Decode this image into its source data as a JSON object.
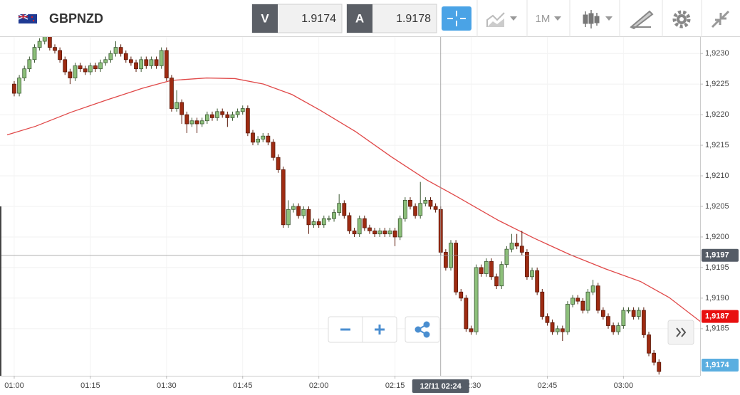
{
  "toolbar": {
    "symbol": "GBPNZD",
    "bid_label": "V",
    "bid": "1.9174",
    "ask_label": "A",
    "ask": "1.9178",
    "interval": "1M"
  },
  "chart_data": {
    "type": "candlestick",
    "up_color": "#8cbf7a",
    "down_color": "#9e2b12",
    "grid": true,
    "xlim": [
      57.2,
      195.1
    ],
    "ylim": [
      1.91773,
      1.92327
    ],
    "xticks": [
      {
        "value": 60,
        "label": "01:00"
      },
      {
        "value": 75,
        "label": "01:15"
      },
      {
        "value": 90,
        "label": "01:30"
      },
      {
        "value": 105,
        "label": "01:45"
      },
      {
        "value": 120,
        "label": "02:00"
      },
      {
        "value": 135,
        "label": "02:15"
      },
      {
        "value": 150,
        "label": "02:30"
      },
      {
        "value": 165,
        "label": "02:45"
      },
      {
        "value": 180,
        "label": "03:00"
      }
    ],
    "yticks": [
      {
        "value": 1.923,
        "label": "1,9230"
      },
      {
        "value": 1.9225,
        "label": "1,9225"
      },
      {
        "value": 1.922,
        "label": "1,9220"
      },
      {
        "value": 1.9215,
        "label": "1,9215"
      },
      {
        "value": 1.921,
        "label": "1,9210"
      },
      {
        "value": 1.9205,
        "label": "1,9205"
      },
      {
        "value": 1.92,
        "label": "1,9200"
      },
      {
        "value": 1.9195,
        "label": "1,9195"
      },
      {
        "value": 1.919,
        "label": "1,9190"
      },
      {
        "value": 1.9185,
        "label": "1,9185"
      }
    ],
    "x": [
      60,
      61,
      62,
      63,
      64,
      65,
      66,
      67,
      68,
      69,
      70,
      71,
      72,
      73,
      74,
      75,
      76,
      77,
      78,
      79,
      80,
      81,
      82,
      83,
      84,
      85,
      86,
      87,
      88,
      89,
      90,
      91,
      92,
      93,
      94,
      95,
      96,
      97,
      98,
      99,
      100,
      101,
      102,
      103,
      104,
      105,
      106,
      107,
      108,
      109,
      110,
      111,
      112,
      113,
      114,
      115,
      116,
      117,
      118,
      119,
      120,
      121,
      122,
      123,
      124,
      125,
      126,
      127,
      128,
      129,
      130,
      131,
      132,
      133,
      134,
      135,
      136,
      137,
      138,
      139,
      140,
      141,
      142,
      143,
      144,
      145,
      146,
      147,
      148,
      149,
      150,
      151,
      152,
      153,
      154,
      155,
      156,
      157,
      158,
      159,
      160,
      161,
      162,
      163,
      164,
      165,
      166,
      167,
      168,
      169,
      170,
      171,
      172,
      173,
      174,
      175,
      176,
      177,
      178,
      179,
      180,
      181,
      182,
      183,
      184,
      185,
      186,
      187
    ],
    "open": [
      1.9225,
      1.92235,
      1.9226,
      1.92275,
      1.9229,
      1.9231,
      1.9232,
      1.9233,
      1.9231,
      1.92305,
      1.9229,
      1.9227,
      1.9226,
      1.9228,
      1.92275,
      1.9227,
      1.9228,
      1.92275,
      1.92285,
      1.9229,
      1.923,
      1.9231,
      1.923,
      1.9229,
      1.92285,
      1.92275,
      1.9229,
      1.9228,
      1.9229,
      1.9228,
      1.92305,
      1.9226,
      1.9221,
      1.9222,
      1.922,
      1.92185,
      1.9219,
      1.92185,
      1.9219,
      1.922,
      1.92195,
      1.92205,
      1.922,
      1.92195,
      1.922,
      1.92205,
      1.9221,
      1.9217,
      1.92155,
      1.9216,
      1.92165,
      1.92155,
      1.9213,
      1.9211,
      1.9202,
      1.92045,
      1.9205,
      1.92035,
      1.92045,
      1.9202,
      1.92025,
      1.9202,
      1.9203,
      1.9203,
      1.9204,
      1.92055,
      1.92035,
      1.9201,
      1.92005,
      1.9203,
      1.92015,
      1.9201,
      1.92005,
      1.9201,
      1.92005,
      1.9201,
      1.92,
      1.9203,
      1.9206,
      1.9205,
      1.92035,
      1.92055,
      1.9206,
      1.9205,
      1.92045,
      1.91975,
      1.9195,
      1.9199,
      1.9191,
      1.919,
      1.9185,
      1.91845,
      1.9195,
      1.9194,
      1.9196,
      1.91935,
      1.9192,
      1.91955,
      1.9198,
      1.9199,
      1.91985,
      1.91975,
      1.91935,
      1.91945,
      1.9191,
      1.9187,
      1.9186,
      1.91845,
      1.9185,
      1.91845,
      1.9189,
      1.919,
      1.91895,
      1.9188,
      1.9191,
      1.9192,
      1.9188,
      1.9187,
      1.91855,
      1.91845,
      1.91855,
      1.9188,
      1.9188,
      1.9187,
      1.9188,
      1.9184,
      1.9181,
      1.91795
    ],
    "high": [
      1.92255,
      1.92265,
      1.9228,
      1.92295,
      1.92315,
      1.92325,
      1.92335,
      1.92335,
      1.92315,
      1.9231,
      1.92295,
      1.92275,
      1.92285,
      1.92285,
      1.9228,
      1.92285,
      1.92285,
      1.9229,
      1.92295,
      1.92305,
      1.9232,
      1.92315,
      1.92305,
      1.92295,
      1.9229,
      1.92295,
      1.92295,
      1.92295,
      1.92295,
      1.9231,
      1.9231,
      1.92265,
      1.9224,
      1.92225,
      1.92205,
      1.92195,
      1.92195,
      1.92195,
      1.92205,
      1.92205,
      1.9221,
      1.9221,
      1.92205,
      1.92205,
      1.9221,
      1.92215,
      1.92215,
      1.92175,
      1.92165,
      1.9217,
      1.9217,
      1.9216,
      1.92135,
      1.92115,
      1.9206,
      1.92055,
      1.92055,
      1.9205,
      1.9205,
      1.9203,
      1.9203,
      1.92035,
      1.92035,
      1.92045,
      1.9207,
      1.9206,
      1.9204,
      1.92015,
      1.92035,
      1.92035,
      1.9202,
      1.92015,
      1.92015,
      1.92015,
      1.92015,
      1.92015,
      1.92035,
      1.92065,
      1.92065,
      1.92055,
      1.9209,
      1.92065,
      1.92065,
      1.92055,
      1.9205,
      1.9198,
      1.91995,
      1.91995,
      1.91915,
      1.91905,
      1.91855,
      1.91955,
      1.91955,
      1.91965,
      1.91965,
      1.9194,
      1.9196,
      1.91985,
      1.92005,
      1.92005,
      1.9201,
      1.9198,
      1.9195,
      1.9195,
      1.91915,
      1.91875,
      1.91865,
      1.91855,
      1.91855,
      1.91895,
      1.91905,
      1.91905,
      1.919,
      1.91915,
      1.9193,
      1.91925,
      1.91885,
      1.91875,
      1.9186,
      1.9186,
      1.91885,
      1.91885,
      1.91885,
      1.91885,
      1.91885,
      1.91845,
      1.91815,
      1.918
    ],
    "low": [
      1.9223,
      1.9223,
      1.92255,
      1.9227,
      1.92285,
      1.92305,
      1.92315,
      1.92305,
      1.923,
      1.92285,
      1.92265,
      1.9225,
      1.92255,
      1.9227,
      1.92265,
      1.92265,
      1.9227,
      1.9227,
      1.9228,
      1.92285,
      1.92295,
      1.92295,
      1.92285,
      1.9228,
      1.9227,
      1.9227,
      1.92275,
      1.92275,
      1.92275,
      1.92275,
      1.92255,
      1.92205,
      1.92205,
      1.92185,
      1.9217,
      1.9218,
      1.9217,
      1.9218,
      1.92185,
      1.9219,
      1.9219,
      1.92195,
      1.9218,
      1.9219,
      1.92195,
      1.922,
      1.92165,
      1.9215,
      1.9215,
      1.92155,
      1.9215,
      1.92125,
      1.92105,
      1.92015,
      1.92015,
      1.9204,
      1.9203,
      1.9203,
      1.92005,
      1.92015,
      1.92015,
      1.92015,
      1.92025,
      1.92025,
      1.92035,
      1.9203,
      1.92005,
      1.92,
      1.92,
      1.9201,
      1.92005,
      1.92,
      1.92,
      1.92,
      1.92,
      1.91985,
      1.91995,
      1.92025,
      1.92045,
      1.9203,
      1.9203,
      1.9205,
      1.92045,
      1.9204,
      1.9197,
      1.91945,
      1.91945,
      1.91905,
      1.91895,
      1.91845,
      1.9184,
      1.9184,
      1.91935,
      1.91935,
      1.9193,
      1.91915,
      1.91915,
      1.9195,
      1.91975,
      1.9198,
      1.9197,
      1.9193,
      1.9193,
      1.91905,
      1.91865,
      1.91855,
      1.9184,
      1.9184,
      1.9183,
      1.9184,
      1.91885,
      1.9189,
      1.91875,
      1.91875,
      1.91905,
      1.91875,
      1.91865,
      1.9185,
      1.9184,
      1.9184,
      1.9185,
      1.91875,
      1.91865,
      1.91865,
      1.91835,
      1.91805,
      1.9179,
      1.91775
    ],
    "close": [
      1.92235,
      1.9226,
      1.92275,
      1.9229,
      1.9231,
      1.9232,
      1.9233,
      1.9231,
      1.92305,
      1.9229,
      1.9227,
      1.9226,
      1.9228,
      1.92275,
      1.9227,
      1.9228,
      1.92275,
      1.92285,
      1.9229,
      1.923,
      1.9231,
      1.923,
      1.9229,
      1.92285,
      1.92275,
      1.9229,
      1.9228,
      1.9229,
      1.9228,
      1.92305,
      1.9226,
      1.9221,
      1.9222,
      1.922,
      1.92185,
      1.9219,
      1.92185,
      1.9219,
      1.922,
      1.92195,
      1.92205,
      1.922,
      1.92195,
      1.922,
      1.92205,
      1.9221,
      1.9217,
      1.92155,
      1.9216,
      1.92165,
      1.92155,
      1.9213,
      1.9211,
      1.9202,
      1.92045,
      1.9205,
      1.92035,
      1.92045,
      1.9202,
      1.92025,
      1.9202,
      1.9203,
      1.9203,
      1.9204,
      1.92055,
      1.92035,
      1.9201,
      1.92005,
      1.9203,
      1.92015,
      1.9201,
      1.92005,
      1.9201,
      1.92005,
      1.9201,
      1.92,
      1.9203,
      1.9206,
      1.9205,
      1.92035,
      1.92055,
      1.9206,
      1.9205,
      1.92045,
      1.91975,
      1.9195,
      1.9199,
      1.9191,
      1.919,
      1.9185,
      1.91845,
      1.9195,
      1.9194,
      1.9196,
      1.91935,
      1.9192,
      1.91955,
      1.9198,
      1.9199,
      1.91985,
      1.91975,
      1.91935,
      1.91945,
      1.9191,
      1.9187,
      1.9186,
      1.91845,
      1.9185,
      1.91845,
      1.9189,
      1.919,
      1.91895,
      1.9188,
      1.9191,
      1.9192,
      1.9188,
      1.9187,
      1.91855,
      1.91845,
      1.91855,
      1.9188,
      1.9188,
      1.9187,
      1.9188,
      1.9184,
      1.9181,
      1.91795,
      1.9178
    ],
    "moving_average": {
      "color": "#e04848",
      "x": [
        58.6,
        64.2,
        71.2,
        78.2,
        85.2,
        90.9,
        97.9,
        103.5,
        109.1,
        114.7,
        120.3,
        127.3,
        134.3,
        141.3,
        147,
        155.4,
        162.4,
        169.5,
        176.4,
        183.4,
        189,
        195.1
      ],
      "values": [
        1.92167,
        1.92181,
        1.92204,
        1.92224,
        1.92243,
        1.92256,
        1.9226,
        1.92259,
        1.9225,
        1.92233,
        1.92207,
        1.92172,
        1.92131,
        1.92093,
        1.92067,
        1.92027,
        1.91998,
        1.91971,
        1.91948,
        1.91927,
        1.91901,
        1.91862
      ]
    },
    "crosshair": {
      "x": {
        "value": 144,
        "label": "12/11 02:24"
      },
      "y": {
        "value": 1.9197,
        "label": "1,9197"
      },
      "color": "#555c66"
    },
    "price_labels": [
      {
        "value": 1.9187,
        "label": "1,9187",
        "color": "#e81010"
      },
      {
        "value": 1.9174,
        "label": "1,9174",
        "color": "#5aaee0"
      }
    ]
  }
}
